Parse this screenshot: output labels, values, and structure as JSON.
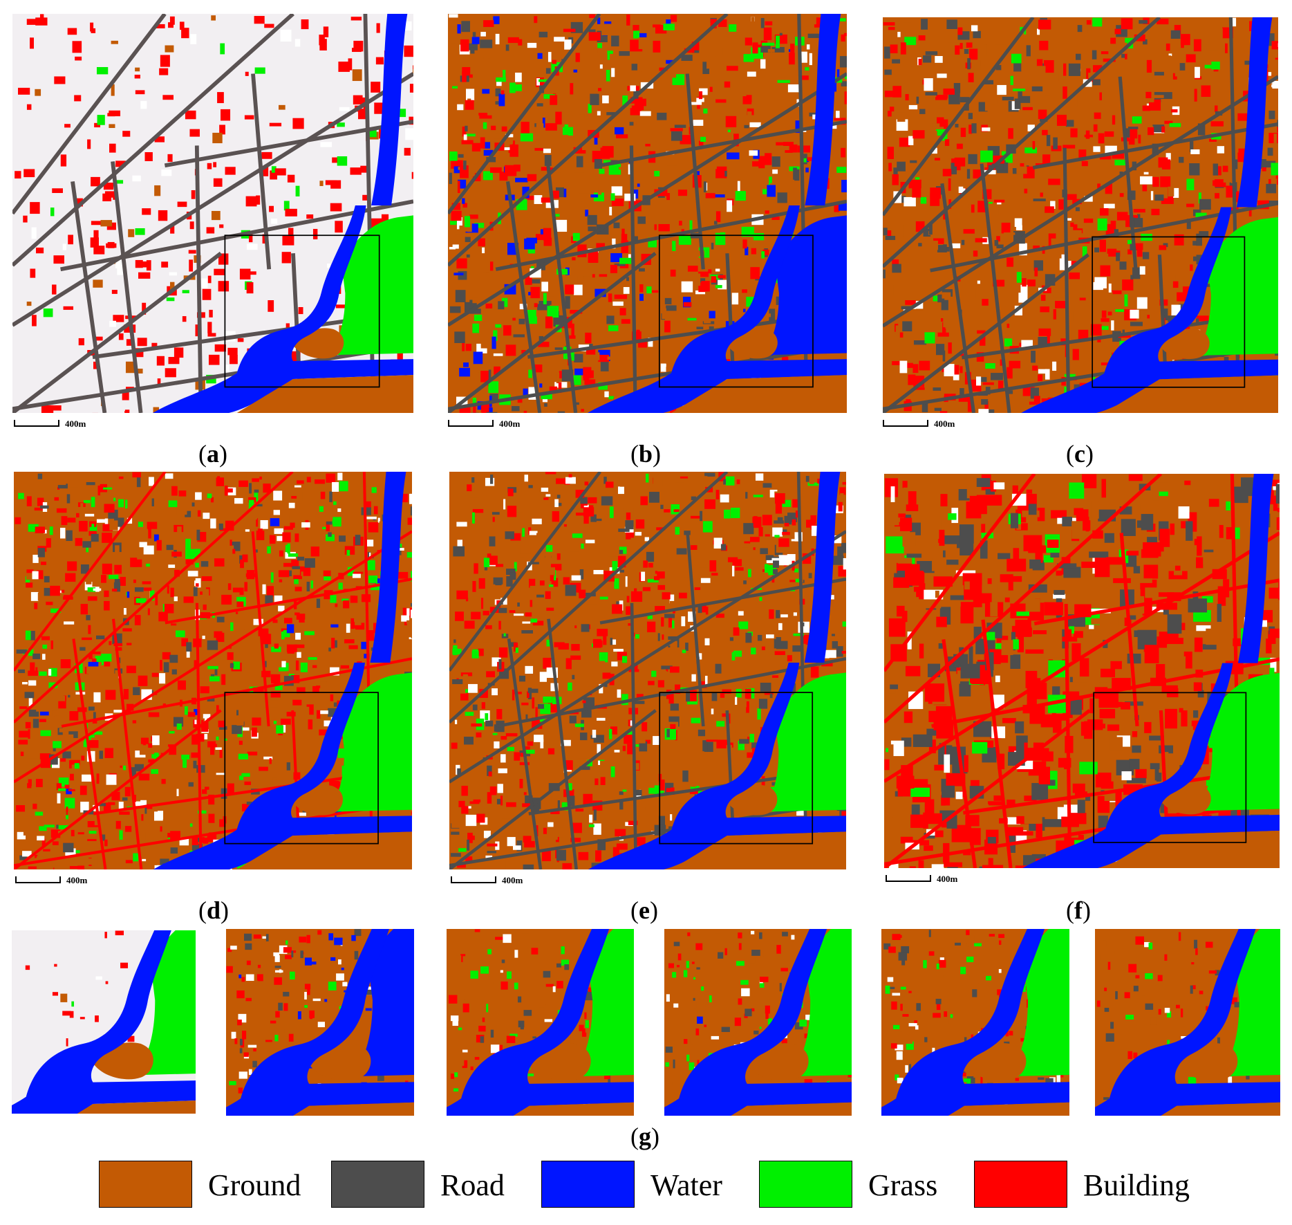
{
  "colors": {
    "ground": "#C35A04",
    "road": "#4D4D4D",
    "water": "#0015FF",
    "grass": "#00F000",
    "building": "#FF0000",
    "background": "#F2EFF2",
    "unlabeled": "#FFFFFF"
  },
  "scalebar_label": "400m",
  "captions": {
    "a": "a",
    "b": "b",
    "c": "c",
    "d": "d",
    "e": "e",
    "f": "f",
    "g": "g"
  },
  "legend": [
    {
      "label": "Ground",
      "color": "#C35A04"
    },
    {
      "label": "Road",
      "color": "#4D4D4D"
    },
    {
      "label": "Water",
      "color": "#0015FF"
    },
    {
      "label": "Grass",
      "color": "#00F000"
    },
    {
      "label": "Building",
      "color": "#FF0000"
    }
  ]
}
